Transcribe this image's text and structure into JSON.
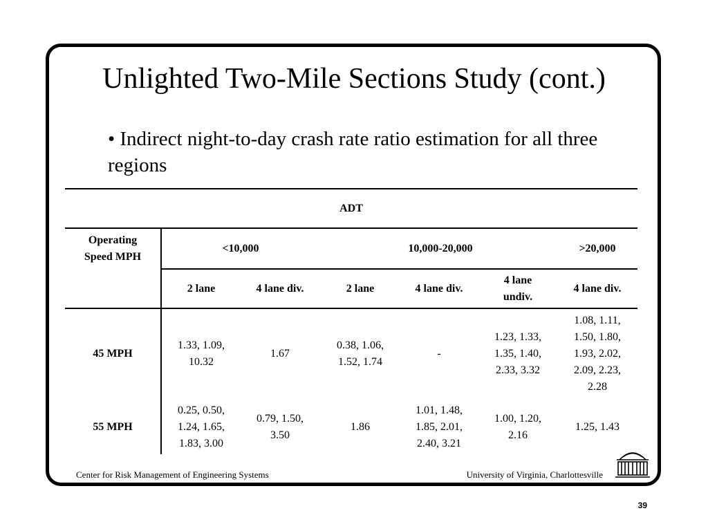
{
  "slide": {
    "title": "Unlighted Two-Mile Sections Study (cont.)",
    "bullet": "• Indirect night-to-day crash rate ratio estimation for all three regions"
  },
  "table": {
    "adt_header": "ADT",
    "row_header": "Operating Speed MPH",
    "adt_groups": [
      "<10,000",
      "10,000-20,000",
      ">20,000"
    ],
    "subheaders": [
      "2 lane",
      "4 lane div.",
      "2 lane",
      "4 lane div.",
      "4 lane undiv.",
      "4 lane div."
    ],
    "rows": [
      {
        "label": "45 MPH",
        "cells": [
          "1.33, 1.09, 10.32",
          "1.67",
          "0.38, 1.06, 1.52, 1.74",
          "-",
          "1.23, 1.33, 1.35, 1.40, 2.33, 3.32",
          "1.08, 1.11, 1.50, 1.80, 1.93, 2.02, 2.09, 2.23, 2.28"
        ]
      },
      {
        "label": "55 MPH",
        "cells": [
          "0.25, 0.50, 1.24, 1.65, 1.83, 3.00",
          "0.79, 1.50, 3.50",
          "1.86",
          "1.01, 1.48, 1.85, 2.01, 2.40, 3.21",
          "1.00, 1.20, 2.16",
          "1.25, 1.43"
        ]
      }
    ]
  },
  "footer": {
    "left": "Center for Risk Management of Engineering Systems",
    "right": "University of Virginia, Charlottesville",
    "page": "39"
  }
}
